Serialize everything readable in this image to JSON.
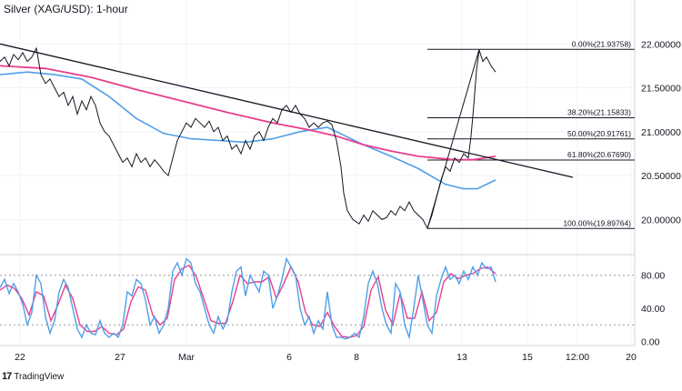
{
  "chart_data": {
    "type": "line",
    "title": "Silver (XAG/USD): 1-hour",
    "price_axis": {
      "ticks": [
        "22.00000",
        "21.50000",
        "21.00000",
        "20.50000",
        "20.00000"
      ],
      "tick_values": [
        22.0,
        21.5,
        21.0,
        20.5,
        20.0
      ],
      "ylim": [
        19.6,
        22.5
      ]
    },
    "oscillator_axis": {
      "ticks": [
        "80.00",
        "40.00",
        "0.00"
      ],
      "tick_values": [
        80,
        40,
        0
      ],
      "ylim": [
        -5,
        105
      ],
      "levels": [
        80,
        20
      ]
    },
    "x_axis": {
      "ticks": [
        "22",
        "27",
        "Mar",
        "6",
        "8",
        "13",
        "15",
        "12:00",
        "20"
      ]
    },
    "fibonacci": [
      {
        "label": "0.00%(21.93758)",
        "level": 0.0,
        "price": 21.93758
      },
      {
        "label": "38.20%(21.15833)",
        "level": 38.2,
        "price": 21.15833
      },
      {
        "label": "50.00%(20.91761)",
        "level": 50.0,
        "price": 20.91761
      },
      {
        "label": "61.80%(20.67690)",
        "level": 61.8,
        "price": 20.6769
      },
      {
        "label": "100.00%(19.89764)",
        "level": 100.0,
        "price": 19.89764
      }
    ],
    "price_series": [
      [
        0,
        21.8
      ],
      [
        5,
        21.85
      ],
      [
        10,
        21.75
      ],
      [
        15,
        21.88
      ],
      [
        20,
        21.82
      ],
      [
        25,
        21.9
      ],
      [
        30,
        21.8
      ],
      [
        35,
        21.85
      ],
      [
        40,
        21.95
      ],
      [
        45,
        21.65
      ],
      [
        50,
        21.55
      ],
      [
        55,
        21.6
      ],
      [
        60,
        21.5
      ],
      [
        65,
        21.4
      ],
      [
        70,
        21.45
      ],
      [
        75,
        21.3
      ],
      [
        80,
        21.4
      ],
      [
        85,
        21.2
      ],
      [
        90,
        21.35
      ],
      [
        95,
        21.25
      ],
      [
        100,
        21.4
      ],
      [
        105,
        21.3
      ],
      [
        110,
        21.1
      ],
      [
        115,
        21.0
      ],
      [
        120,
        20.95
      ],
      [
        125,
        20.85
      ],
      [
        130,
        20.75
      ],
      [
        135,
        20.65
      ],
      [
        140,
        20.7
      ],
      [
        145,
        20.6
      ],
      [
        150,
        20.75
      ],
      [
        155,
        20.65
      ],
      [
        160,
        20.7
      ],
      [
        165,
        20.6
      ],
      [
        170,
        20.68
      ],
      [
        175,
        20.62
      ],
      [
        180,
        20.55
      ],
      [
        185,
        20.5
      ],
      [
        190,
        20.7
      ],
      [
        195,
        20.9
      ],
      [
        200,
        21.0
      ],
      [
        205,
        21.1
      ],
      [
        210,
        21.05
      ],
      [
        215,
        21.15
      ],
      [
        220,
        21.1
      ],
      [
        225,
        21.05
      ],
      [
        230,
        21.12
      ],
      [
        235,
        21.0
      ],
      [
        240,
        21.05
      ],
      [
        245,
        20.9
      ],
      [
        250,
        20.95
      ],
      [
        255,
        20.8
      ],
      [
        260,
        20.85
      ],
      [
        265,
        20.75
      ],
      [
        270,
        20.9
      ],
      [
        275,
        20.8
      ],
      [
        280,
        20.95
      ],
      [
        285,
        21.0
      ],
      [
        290,
        20.9
      ],
      [
        295,
        21.05
      ],
      [
        300,
        21.15
      ],
      [
        305,
        21.1
      ],
      [
        310,
        21.25
      ],
      [
        315,
        21.3
      ],
      [
        320,
        21.22
      ],
      [
        325,
        21.3
      ],
      [
        330,
        21.2
      ],
      [
        335,
        21.15
      ],
      [
        340,
        21.05
      ],
      [
        345,
        21.1
      ],
      [
        350,
        21.05
      ],
      [
        355,
        21.1
      ],
      [
        360,
        21.12
      ],
      [
        365,
        21.08
      ],
      [
        370,
        20.9
      ],
      [
        375,
        20.6
      ],
      [
        378,
        20.3
      ],
      [
        382,
        20.1
      ],
      [
        388,
        20.0
      ],
      [
        395,
        19.95
      ],
      [
        400,
        20.05
      ],
      [
        405,
        19.98
      ],
      [
        410,
        20.1
      ],
      [
        415,
        20.05
      ],
      [
        420,
        20.0
      ],
      [
        425,
        20.02
      ],
      [
        430,
        20.1
      ],
      [
        435,
        20.05
      ],
      [
        440,
        20.15
      ],
      [
        445,
        20.1
      ],
      [
        450,
        20.2
      ],
      [
        455,
        20.1
      ],
      [
        460,
        20.05
      ],
      [
        465,
        20.0
      ],
      [
        470,
        19.9
      ],
      [
        475,
        20.05
      ],
      [
        480,
        20.25
      ],
      [
        485,
        20.45
      ],
      [
        490,
        20.6
      ],
      [
        495,
        20.55
      ],
      [
        500,
        20.7
      ],
      [
        505,
        20.65
      ],
      [
        510,
        20.75
      ],
      [
        515,
        20.7
      ],
      [
        518,
        20.95
      ],
      [
        521,
        21.3
      ],
      [
        524,
        21.7
      ],
      [
        527,
        21.93
      ],
      [
        531,
        21.8
      ],
      [
        535,
        21.85
      ],
      [
        540,
        21.75
      ],
      [
        545,
        21.68
      ]
    ],
    "ma_pink": [
      [
        0,
        21.75
      ],
      [
        50,
        21.72
      ],
      [
        100,
        21.62
      ],
      [
        150,
        21.48
      ],
      [
        200,
        21.35
      ],
      [
        250,
        21.22
      ],
      [
        300,
        21.1
      ],
      [
        340,
        21.02
      ],
      [
        370,
        20.95
      ],
      [
        400,
        20.85
      ],
      [
        430,
        20.78
      ],
      [
        460,
        20.72
      ],
      [
        480,
        20.7
      ],
      [
        500,
        20.68
      ],
      [
        520,
        20.68
      ],
      [
        545,
        20.72
      ]
    ],
    "ma_blue": [
      [
        0,
        21.65
      ],
      [
        30,
        21.68
      ],
      [
        60,
        21.65
      ],
      [
        90,
        21.6
      ],
      [
        120,
        21.4
      ],
      [
        150,
        21.15
      ],
      [
        180,
        20.98
      ],
      [
        210,
        20.92
      ],
      [
        240,
        20.9
      ],
      [
        270,
        20.88
      ],
      [
        300,
        20.92
      ],
      [
        330,
        21.0
      ],
      [
        360,
        21.05
      ],
      [
        380,
        20.95
      ],
      [
        400,
        20.85
      ],
      [
        430,
        20.72
      ],
      [
        460,
        20.58
      ],
      [
        490,
        20.4
      ],
      [
        510,
        20.35
      ],
      [
        525,
        20.35
      ],
      [
        545,
        20.45
      ]
    ],
    "trendline": [
      [
        0,
        22.0
      ],
      [
        630,
        20.48
      ]
    ],
    "stoch_k": [
      [
        0,
        65
      ],
      [
        5,
        75
      ],
      [
        10,
        58
      ],
      [
        15,
        70
      ],
      [
        20,
        60
      ],
      [
        25,
        45
      ],
      [
        30,
        20
      ],
      [
        35,
        35
      ],
      [
        40,
        80
      ],
      [
        45,
        70
      ],
      [
        50,
        30
      ],
      [
        55,
        10
      ],
      [
        60,
        25
      ],
      [
        65,
        60
      ],
      [
        70,
        75
      ],
      [
        75,
        65
      ],
      [
        80,
        40
      ],
      [
        85,
        15
      ],
      [
        90,
        5
      ],
      [
        95,
        20
      ],
      [
        100,
        10
      ],
      [
        105,
        8
      ],
      [
        110,
        25
      ],
      [
        115,
        10
      ],
      [
        120,
        5
      ],
      [
        125,
        10
      ],
      [
        130,
        5
      ],
      [
        135,
        20
      ],
      [
        140,
        60
      ],
      [
        145,
        55
      ],
      [
        150,
        75
      ],
      [
        155,
        70
      ],
      [
        160,
        50
      ],
      [
        165,
        20
      ],
      [
        170,
        30
      ],
      [
        175,
        10
      ],
      [
        180,
        20
      ],
      [
        185,
        40
      ],
      [
        190,
        85
      ],
      [
        195,
        95
      ],
      [
        200,
        80
      ],
      [
        205,
        100
      ],
      [
        210,
        95
      ],
      [
        215,
        70
      ],
      [
        220,
        60
      ],
      [
        225,
        40
      ],
      [
        230,
        20
      ],
      [
        235,
        10
      ],
      [
        240,
        30
      ],
      [
        245,
        15
      ],
      [
        250,
        25
      ],
      [
        255,
        60
      ],
      [
        260,
        85
      ],
      [
        265,
        90
      ],
      [
        270,
        55
      ],
      [
        275,
        80
      ],
      [
        280,
        70
      ],
      [
        285,
        60
      ],
      [
        290,
        85
      ],
      [
        295,
        80
      ],
      [
        300,
        40
      ],
      [
        305,
        55
      ],
      [
        310,
        75
      ],
      [
        315,
        100
      ],
      [
        320,
        90
      ],
      [
        325,
        80
      ],
      [
        330,
        40
      ],
      [
        335,
        20
      ],
      [
        340,
        30
      ],
      [
        345,
        10
      ],
      [
        350,
        25
      ],
      [
        355,
        15
      ],
      [
        360,
        60
      ],
      [
        365,
        20
      ],
      [
        370,
        5
      ],
      [
        375,
        5
      ],
      [
        380,
        3
      ],
      [
        385,
        5
      ],
      [
        390,
        10
      ],
      [
        395,
        5
      ],
      [
        400,
        30
      ],
      [
        405,
        70
      ],
      [
        410,
        85
      ],
      [
        415,
        70
      ],
      [
        420,
        40
      ],
      [
        425,
        20
      ],
      [
        430,
        10
      ],
      [
        435,
        70
      ],
      [
        440,
        60
      ],
      [
        445,
        20
      ],
      [
        450,
        5
      ],
      [
        455,
        40
      ],
      [
        460,
        80
      ],
      [
        465,
        50
      ],
      [
        470,
        20
      ],
      [
        475,
        10
      ],
      [
        480,
        55
      ],
      [
        485,
        75
      ],
      [
        490,
        90
      ],
      [
        495,
        75
      ],
      [
        500,
        80
      ],
      [
        505,
        70
      ],
      [
        510,
        85
      ],
      [
        515,
        75
      ],
      [
        520,
        90
      ],
      [
        525,
        80
      ],
      [
        530,
        95
      ],
      [
        535,
        88
      ],
      [
        540,
        90
      ],
      [
        545,
        72
      ]
    ],
    "stoch_d": [
      [
        0,
        62
      ],
      [
        8,
        68
      ],
      [
        16,
        64
      ],
      [
        24,
        52
      ],
      [
        32,
        32
      ],
      [
        40,
        60
      ],
      [
        48,
        55
      ],
      [
        56,
        25
      ],
      [
        64,
        45
      ],
      [
        72,
        68
      ],
      [
        80,
        52
      ],
      [
        88,
        20
      ],
      [
        96,
        12
      ],
      [
        104,
        12
      ],
      [
        112,
        18
      ],
      [
        120,
        10
      ],
      [
        128,
        8
      ],
      [
        136,
        15
      ],
      [
        144,
        48
      ],
      [
        152,
        66
      ],
      [
        160,
        62
      ],
      [
        168,
        32
      ],
      [
        176,
        20
      ],
      [
        184,
        28
      ],
      [
        192,
        75
      ],
      [
        200,
        88
      ],
      [
        208,
        92
      ],
      [
        216,
        78
      ],
      [
        224,
        52
      ],
      [
        232,
        25
      ],
      [
        240,
        22
      ],
      [
        248,
        22
      ],
      [
        256,
        48
      ],
      [
        264,
        80
      ],
      [
        272,
        70
      ],
      [
        280,
        72
      ],
      [
        288,
        72
      ],
      [
        296,
        78
      ],
      [
        304,
        52
      ],
      [
        312,
        70
      ],
      [
        320,
        90
      ],
      [
        328,
        72
      ],
      [
        336,
        35
      ],
      [
        344,
        20
      ],
      [
        352,
        18
      ],
      [
        360,
        35
      ],
      [
        368,
        18
      ],
      [
        376,
        6
      ],
      [
        384,
        5
      ],
      [
        392,
        7
      ],
      [
        400,
        18
      ],
      [
        408,
        62
      ],
      [
        416,
        78
      ],
      [
        424,
        38
      ],
      [
        432,
        20
      ],
      [
        440,
        58
      ],
      [
        448,
        28
      ],
      [
        456,
        28
      ],
      [
        464,
        60
      ],
      [
        472,
        25
      ],
      [
        480,
        35
      ],
      [
        488,
        72
      ],
      [
        496,
        82
      ],
      [
        504,
        76
      ],
      [
        512,
        80
      ],
      [
        520,
        82
      ],
      [
        528,
        88
      ],
      [
        536,
        90
      ],
      [
        545,
        82
      ]
    ]
  },
  "brand": {
    "logo": "17",
    "name": "TradingView"
  }
}
